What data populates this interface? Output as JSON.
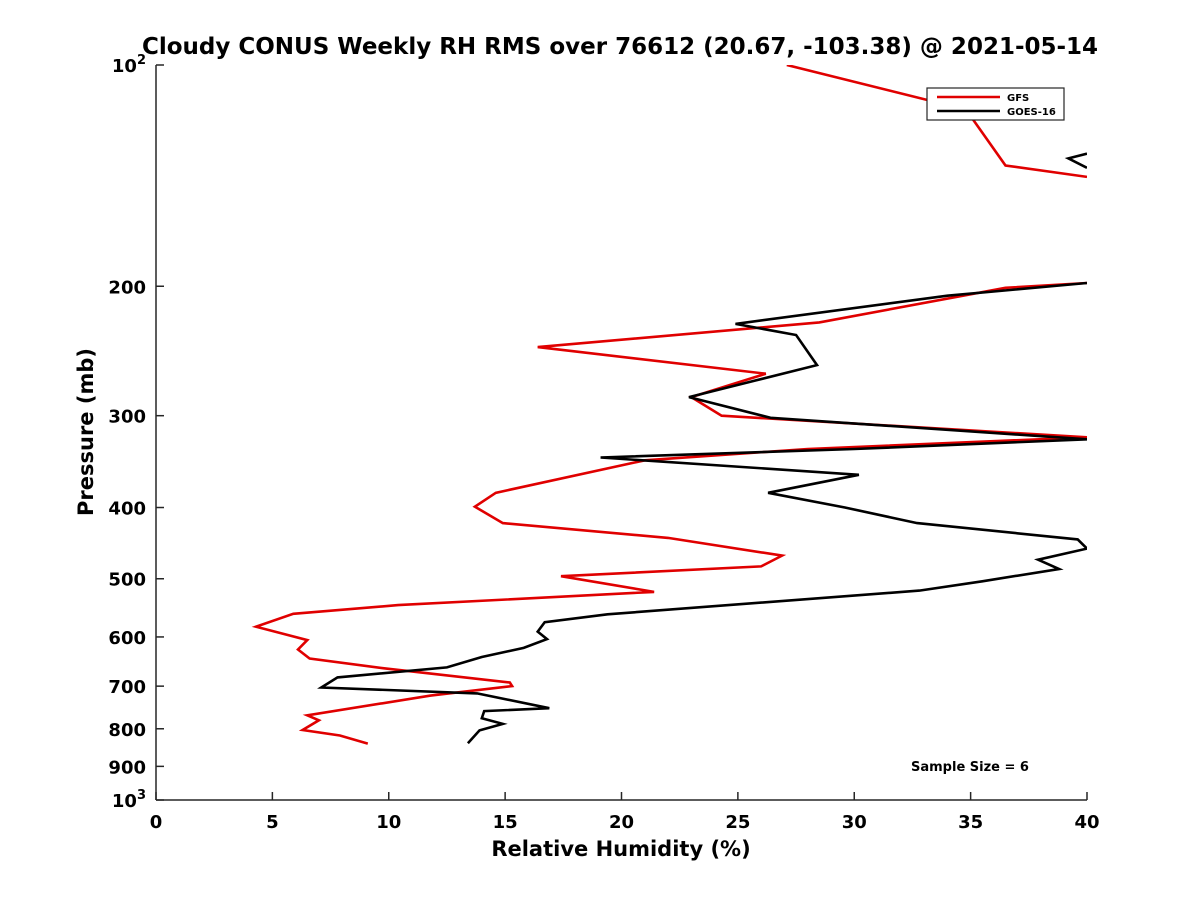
{
  "chart_data": {
    "type": "line",
    "title": "Cloudy CONUS Weekly RH RMS over 76612 (20.67, -103.38) @ 2021-05-14",
    "xlabel": "Relative Humidity (%)",
    "ylabel": "Pressure (mb)",
    "xlim": [
      0,
      40
    ],
    "ylim": [
      100,
      1000
    ],
    "y_scale": "log",
    "y_reversed": true,
    "x_ticks": [
      0,
      5,
      10,
      15,
      20,
      25,
      30,
      35,
      40
    ],
    "x_tick_labels": [
      "0",
      "5",
      "10",
      "15",
      "20",
      "25",
      "30",
      "35",
      "40"
    ],
    "y_ticks": [
      100,
      200,
      300,
      400,
      500,
      600,
      700,
      800,
      900,
      1000
    ],
    "y_tick_labels": [
      {
        "base": "10",
        "exp": "2"
      },
      {
        "base": "200",
        "exp": ""
      },
      {
        "base": "300",
        "exp": ""
      },
      {
        "base": "400",
        "exp": ""
      },
      {
        "base": "500",
        "exp": ""
      },
      {
        "base": "600",
        "exp": ""
      },
      {
        "base": "700",
        "exp": ""
      },
      {
        "base": "800",
        "exp": ""
      },
      {
        "base": "900",
        "exp": ""
      },
      {
        "base": "10",
        "exp": "3"
      }
    ],
    "legend_position": "top-right",
    "annotation": "Sample Size = 6",
    "series": [
      {
        "name": "GFS",
        "color": "#e00000",
        "points": [
          [
            27.1,
            100
          ],
          [
            34.8,
            115
          ],
          [
            36.5,
            137
          ],
          [
            40,
            142
          ],
          [
            null,
            null
          ],
          [
            40,
            198
          ],
          [
            36.5,
            201
          ],
          [
            28.5,
            224
          ],
          [
            16.4,
            242
          ],
          [
            26.2,
            263
          ],
          [
            23.0,
            283
          ],
          [
            24.3,
            300
          ],
          [
            40,
            321
          ],
          [
            28,
            333
          ],
          [
            21.0,
            345
          ],
          [
            14.6,
            382
          ],
          [
            13.7,
            399
          ],
          [
            14.9,
            420
          ],
          [
            22.0,
            440
          ],
          [
            26.9,
            465
          ],
          [
            26.0,
            481
          ],
          [
            17.4,
            496
          ],
          [
            21.4,
            521
          ],
          [
            10.4,
            543
          ],
          [
            5.9,
            558
          ],
          [
            4.3,
            581
          ],
          [
            6.5,
            606
          ],
          [
            6.1,
            624
          ],
          [
            6.6,
            642
          ],
          [
            9.8,
            662
          ],
          [
            15.2,
            692
          ],
          [
            15.3,
            700
          ],
          [
            11.8,
            721
          ],
          [
            6.5,
            767
          ],
          [
            7.0,
            779
          ],
          [
            6.3,
            803
          ],
          [
            7.9,
            817
          ],
          [
            9.1,
            838
          ]
        ]
      },
      {
        "name": "GOES-16",
        "color": "#000000",
        "points": [
          [
            40,
            132
          ],
          [
            39.2,
            134
          ],
          [
            40,
            138
          ],
          [
            null,
            null
          ],
          [
            40,
            198
          ],
          [
            34,
            206
          ],
          [
            24.9,
            225
          ],
          [
            27.5,
            233
          ],
          [
            28.4,
            256
          ],
          [
            22.9,
            283
          ],
          [
            26.4,
            302
          ],
          [
            40,
            323
          ],
          [
            30,
            333
          ],
          [
            19.1,
            342
          ],
          [
            30.2,
            361
          ],
          [
            26.3,
            382
          ],
          [
            29.6,
            400
          ],
          [
            32.7,
            420
          ],
          [
            39.6,
            442
          ],
          [
            40.0,
            455
          ],
          [
            37.9,
            471
          ],
          [
            38.8,
            485
          ],
          [
            35.5,
            504
          ],
          [
            32.8,
            519
          ],
          [
            19.4,
            559
          ],
          [
            16.7,
            573
          ],
          [
            16.4,
            590
          ],
          [
            16.8,
            604
          ],
          [
            15.8,
            621
          ],
          [
            14.0,
            639
          ],
          [
            12.5,
            660
          ],
          [
            7.8,
            681
          ],
          [
            7.1,
            703
          ],
          [
            13.8,
            716
          ],
          [
            16.9,
            750
          ],
          [
            14.1,
            757
          ],
          [
            14.0,
            774
          ],
          [
            14.9,
            788
          ],
          [
            13.9,
            804
          ],
          [
            13.4,
            837
          ]
        ]
      }
    ]
  }
}
